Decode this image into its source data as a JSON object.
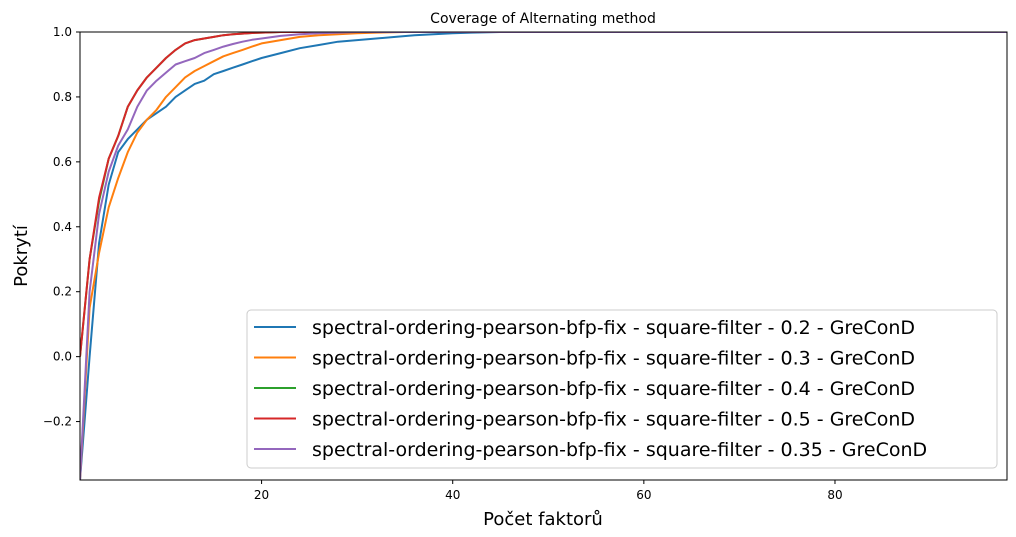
{
  "chart_data": {
    "type": "line",
    "title": "Coverage of Alternating method",
    "xlabel": "Počet faktorů",
    "ylabel": "Pokrytí",
    "xlim": [
      1,
      98
    ],
    "ylim": [
      -0.38,
      1.0
    ],
    "xticks": [
      20,
      40,
      60,
      80
    ],
    "xtick_labels": [
      "20",
      "40",
      "60",
      "80"
    ],
    "yticks": [
      -0.2,
      0.0,
      0.2,
      0.4,
      0.6,
      0.8,
      1.0
    ],
    "ytick_labels": [
      "−0.2",
      "0.0",
      "0.2",
      "0.4",
      "0.6",
      "0.8",
      "1.0"
    ],
    "grid": false,
    "legend_position": "lower-right",
    "series": [
      {
        "name": "spectral-ordering-pearson-bfp-fix - square-filter - 0.2 - GreConD",
        "color": "#1f77b4",
        "x": [
          1,
          2,
          3,
          4,
          5,
          6,
          7,
          8,
          9,
          10,
          11,
          12,
          13,
          14,
          15,
          16,
          17,
          18,
          19,
          20,
          22,
          24,
          26,
          28,
          30,
          32,
          34,
          36,
          38,
          40,
          42,
          45,
          50,
          60,
          70,
          80,
          90,
          98
        ],
        "y": [
          -0.38,
          0.0,
          0.35,
          0.53,
          0.63,
          0.67,
          0.7,
          0.73,
          0.75,
          0.77,
          0.8,
          0.82,
          0.84,
          0.85,
          0.87,
          0.88,
          0.89,
          0.9,
          0.91,
          0.92,
          0.935,
          0.95,
          0.96,
          0.97,
          0.975,
          0.98,
          0.985,
          0.99,
          0.993,
          0.996,
          0.998,
          1.0,
          1.0,
          1.0,
          1.0,
          1.0,
          1.0,
          1.0
        ]
      },
      {
        "name": "spectral-ordering-pearson-bfp-fix - square-filter - 0.3 - GreConD",
        "color": "#ff7f0e",
        "x": [
          1,
          2,
          3,
          4,
          5,
          6,
          7,
          8,
          9,
          10,
          11,
          12,
          13,
          14,
          15,
          16,
          17,
          18,
          19,
          20,
          22,
          24,
          26,
          28,
          30,
          32,
          35,
          40,
          50,
          60,
          70,
          80,
          90,
          98
        ],
        "y": [
          -0.38,
          0.15,
          0.32,
          0.46,
          0.55,
          0.63,
          0.69,
          0.73,
          0.76,
          0.8,
          0.83,
          0.86,
          0.88,
          0.895,
          0.91,
          0.925,
          0.935,
          0.945,
          0.955,
          0.965,
          0.975,
          0.985,
          0.99,
          0.993,
          0.996,
          0.998,
          1.0,
          1.0,
          1.0,
          1.0,
          1.0,
          1.0,
          1.0,
          1.0
        ]
      },
      {
        "name": "spectral-ordering-pearson-bfp-fix - square-filter - 0.4 - GreConD",
        "color": "#2ca02c",
        "x": [
          1,
          2,
          3,
          4,
          5,
          6,
          7,
          8,
          9,
          10,
          11,
          12,
          13,
          14,
          15,
          16,
          17,
          18,
          19,
          20,
          22,
          24,
          26,
          30,
          40,
          50,
          60,
          70,
          80,
          90,
          98
        ],
        "y": [
          0.0,
          0.3,
          0.48,
          0.61,
          0.68,
          0.77,
          0.82,
          0.86,
          0.89,
          0.92,
          0.945,
          0.965,
          0.975,
          0.98,
          0.985,
          0.99,
          0.993,
          0.995,
          0.997,
          0.998,
          1.0,
          1.0,
          1.0,
          1.0,
          1.0,
          1.0,
          1.0,
          1.0,
          1.0,
          1.0,
          1.0
        ]
      },
      {
        "name": "spectral-ordering-pearson-bfp-fix - square-filter - 0.5 - GreConD",
        "color": "#d62728",
        "x": [
          1,
          2,
          3,
          4,
          5,
          6,
          7,
          8,
          9,
          10,
          11,
          12,
          13,
          14,
          15,
          16,
          17,
          18,
          19,
          20,
          22,
          24,
          26,
          30,
          40,
          50,
          60,
          70,
          80,
          90,
          98
        ],
        "y": [
          0.0,
          0.3,
          0.49,
          0.61,
          0.68,
          0.77,
          0.82,
          0.86,
          0.89,
          0.92,
          0.945,
          0.965,
          0.975,
          0.98,
          0.985,
          0.99,
          0.993,
          0.995,
          0.997,
          0.998,
          1.0,
          1.0,
          1.0,
          1.0,
          1.0,
          1.0,
          1.0,
          1.0,
          1.0,
          1.0,
          1.0
        ]
      },
      {
        "name": "spectral-ordering-pearson-bfp-fix - square-filter - 0.35 - GreConD",
        "color": "#9467bd",
        "x": [
          1,
          2,
          3,
          4,
          5,
          6,
          7,
          8,
          9,
          10,
          11,
          12,
          13,
          14,
          15,
          16,
          17,
          18,
          19,
          20,
          22,
          24,
          26,
          28,
          30,
          35,
          40,
          50,
          60,
          70,
          80,
          90,
          98
        ],
        "y": [
          -0.38,
          0.2,
          0.44,
          0.57,
          0.65,
          0.7,
          0.77,
          0.82,
          0.85,
          0.875,
          0.9,
          0.91,
          0.92,
          0.935,
          0.945,
          0.955,
          0.963,
          0.97,
          0.976,
          0.98,
          0.988,
          0.993,
          0.996,
          0.998,
          1.0,
          1.0,
          1.0,
          1.0,
          1.0,
          1.0,
          1.0,
          1.0,
          1.0
        ]
      }
    ]
  }
}
